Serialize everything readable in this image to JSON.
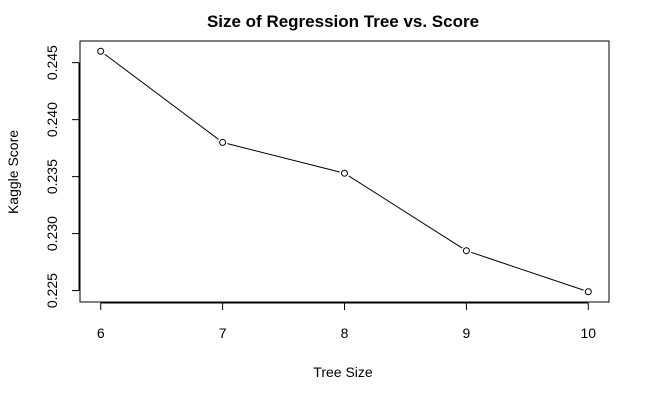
{
  "chart_data": {
    "type": "line",
    "title": "Size of Regression Tree vs. Score",
    "xlabel": "Tree Size",
    "ylabel": "Kaggle Score",
    "x": [
      6,
      7,
      8,
      9,
      10
    ],
    "series": [
      {
        "values": [
          0.246,
          0.238,
          0.2353,
          0.2285,
          0.2249
        ]
      }
    ],
    "xticks": [
      "6",
      "7",
      "8",
      "9",
      "10"
    ],
    "yticks": [
      "0.225",
      "0.230",
      "0.235",
      "0.240",
      "0.245"
    ],
    "xlim": [
      5.83,
      10.17
    ],
    "ylim": [
      0.224,
      0.2469
    ],
    "markers": "open-circle",
    "grid": false,
    "legend": "none"
  }
}
